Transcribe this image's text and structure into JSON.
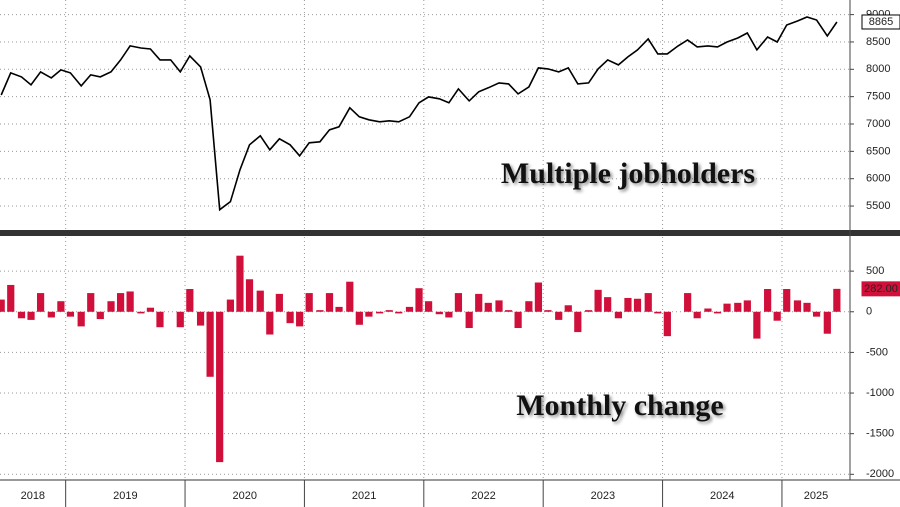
{
  "chart_data": [
    {
      "type": "line",
      "annotation": "Multiple jobholders",
      "color": "#000000",
      "x": [
        2018.46,
        2018.54,
        2018.63,
        2018.71,
        2018.79,
        2018.88,
        2018.96,
        2019.04,
        2019.13,
        2019.21,
        2019.29,
        2019.38,
        2019.46,
        2019.54,
        2019.63,
        2019.71,
        2019.79,
        2019.88,
        2019.96,
        2020.04,
        2020.13,
        2020.21,
        2020.29,
        2020.38,
        2020.46,
        2020.54,
        2020.63,
        2020.71,
        2020.79,
        2020.88,
        2020.96,
        2021.04,
        2021.13,
        2021.21,
        2021.29,
        2021.38,
        2021.46,
        2021.54,
        2021.63,
        2021.71,
        2021.79,
        2021.88,
        2021.96,
        2022.04,
        2022.13,
        2022.21,
        2022.29,
        2022.38,
        2022.46,
        2022.54,
        2022.63,
        2022.71,
        2022.79,
        2022.88,
        2022.96,
        2023.04,
        2023.13,
        2023.21,
        2023.29,
        2023.38,
        2023.46,
        2023.54,
        2023.63,
        2023.71,
        2023.79,
        2023.88,
        2023.96,
        2024.04,
        2024.13,
        2024.21,
        2024.29,
        2024.38,
        2024.46,
        2024.54,
        2024.63,
        2024.71,
        2024.79,
        2024.88,
        2024.96,
        2025.04,
        2025.13,
        2025.21,
        2025.29,
        2025.38,
        2025.46
      ],
      "values": [
        7530,
        7934,
        7861,
        7715,
        7952,
        7843,
        7989,
        7934,
        7697,
        7898,
        7861,
        7952,
        8172,
        8427,
        8390,
        8372,
        8172,
        8172,
        7952,
        8245,
        8044,
        7442,
        5434,
        5580,
        6164,
        6620,
        6785,
        6529,
        6730,
        6620,
        6419,
        6657,
        6675,
        6894,
        6949,
        7296,
        7131,
        7077,
        7040,
        7058,
        7040,
        7131,
        7387,
        7496,
        7460,
        7387,
        7642,
        7423,
        7588,
        7661,
        7752,
        7734,
        7551,
        7679,
        8025,
        8007,
        7952,
        8025,
        7734,
        7752,
        8007,
        8172,
        8080,
        8226,
        8354,
        8555,
        8281,
        8281,
        8427,
        8536,
        8409,
        8427,
        8409,
        8500,
        8573,
        8664,
        8354,
        8591,
        8500,
        8810,
        8883,
        8956,
        8902,
        8610,
        8865
      ],
      "value_labels": [
        null,
        null,
        null,
        null,
        null,
        null,
        null,
        null,
        null,
        null,
        null,
        null,
        null,
        null,
        null,
        null,
        null,
        null,
        null,
        null,
        null,
        null,
        null,
        null,
        null,
        null,
        null,
        null,
        null,
        null,
        null,
        null,
        null,
        null,
        null,
        null,
        null,
        null,
        null,
        null,
        null,
        null,
        null,
        null,
        null,
        null,
        null,
        null,
        null,
        null,
        null,
        null,
        null,
        null,
        null,
        null,
        null,
        null,
        null,
        null,
        null,
        null,
        null,
        null,
        null,
        null,
        null,
        null,
        null,
        null,
        null,
        null,
        null,
        null,
        null,
        null,
        null,
        null,
        null,
        null,
        null,
        null,
        null,
        null,
        "8865"
      ],
      "xlim": [
        2018.45,
        2025.57
      ],
      "xticks": [
        2019,
        2020,
        2021,
        2022,
        2023,
        2024,
        2025
      ],
      "ylim": [
        5062,
        9267
      ],
      "yticks": [
        5500,
        6000,
        6500,
        7000,
        7500,
        8000,
        8500,
        9000
      ],
      "grid": true
    },
    {
      "type": "bar",
      "annotation": "Monthly change",
      "color": "#d0103a",
      "x": [
        2018.46,
        2018.54,
        2018.63,
        2018.71,
        2018.79,
        2018.88,
        2018.96,
        2019.04,
        2019.13,
        2019.21,
        2019.29,
        2019.38,
        2019.46,
        2019.54,
        2019.63,
        2019.71,
        2019.79,
        2019.88,
        2019.96,
        2020.04,
        2020.13,
        2020.21,
        2020.29,
        2020.38,
        2020.46,
        2020.54,
        2020.63,
        2020.71,
        2020.79,
        2020.88,
        2020.96,
        2021.04,
        2021.13,
        2021.21,
        2021.29,
        2021.38,
        2021.46,
        2021.54,
        2021.63,
        2021.71,
        2021.79,
        2021.88,
        2021.96,
        2022.04,
        2022.13,
        2022.21,
        2022.29,
        2022.38,
        2022.46,
        2022.54,
        2022.63,
        2022.71,
        2022.79,
        2022.88,
        2022.96,
        2023.04,
        2023.13,
        2023.21,
        2023.29,
        2023.38,
        2023.46,
        2023.54,
        2023.63,
        2023.71,
        2023.79,
        2023.88,
        2023.96,
        2024.04,
        2024.13,
        2024.21,
        2024.29,
        2024.38,
        2024.46,
        2024.54,
        2024.63,
        2024.71,
        2024.79,
        2024.88,
        2024.96,
        2025.04,
        2025.13,
        2025.21,
        2025.29,
        2025.38,
        2025.46
      ],
      "values": [
        150,
        330,
        -80,
        -100,
        230,
        -70,
        130,
        -60,
        -180,
        230,
        -90,
        130,
        230,
        250,
        -20,
        50,
        -190,
        0,
        -190,
        280,
        -170,
        -800,
        -1850,
        150,
        690,
        400,
        260,
        -280,
        220,
        -140,
        -180,
        230,
        20,
        230,
        60,
        370,
        -160,
        -60,
        -20,
        20,
        -20,
        60,
        290,
        130,
        -30,
        -70,
        230,
        -200,
        220,
        110,
        140,
        20,
        -200,
        130,
        360,
        20,
        -100,
        80,
        -250,
        20,
        270,
        180,
        -80,
        170,
        160,
        230,
        -20,
        -300,
        0,
        230,
        -80,
        40,
        -20,
        100,
        110,
        140,
        -330,
        280,
        -110,
        280,
        140,
        110,
        -60,
        -270,
        282
      ],
      "value_labels": [
        null,
        null,
        null,
        null,
        null,
        null,
        null,
        null,
        null,
        null,
        null,
        null,
        null,
        null,
        null,
        null,
        null,
        null,
        null,
        null,
        null,
        null,
        null,
        null,
        null,
        null,
        null,
        null,
        null,
        null,
        null,
        null,
        null,
        null,
        null,
        null,
        null,
        null,
        null,
        null,
        null,
        null,
        null,
        null,
        null,
        null,
        null,
        null,
        null,
        null,
        null,
        null,
        null,
        null,
        null,
        null,
        null,
        null,
        null,
        null,
        null,
        null,
        null,
        null,
        null,
        null,
        null,
        null,
        null,
        null,
        null,
        null,
        null,
        null,
        null,
        null,
        null,
        null,
        null,
        null,
        null,
        null,
        null,
        null,
        "282.00"
      ],
      "xlim": [
        2018.45,
        2025.57
      ],
      "xticks": [
        2019,
        2020,
        2021,
        2022,
        2023,
        2024,
        2025
      ],
      "xlabels": [
        2018,
        2019,
        2020,
        2021,
        2022,
        2023,
        2024,
        2025
      ],
      "ylim": [
        -2070,
        920
      ],
      "yticks": [
        500,
        0,
        -500,
        -1000,
        -1500,
        -2000
      ],
      "grid": true
    }
  ]
}
